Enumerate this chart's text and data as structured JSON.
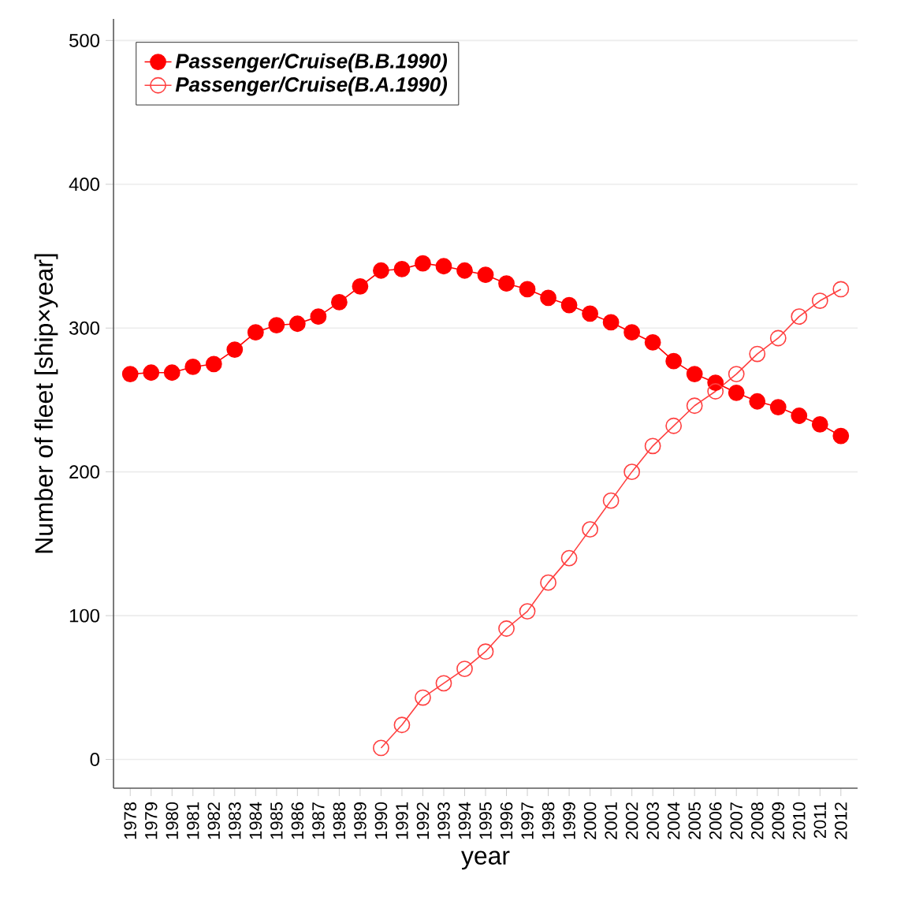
{
  "chart_data": {
    "type": "line",
    "xlabel": "year",
    "ylabel": "Number of fleet [ship×year]",
    "categories": [
      "1978",
      "1979",
      "1980",
      "1981",
      "1982",
      "1983",
      "1984",
      "1985",
      "1986",
      "1987",
      "1988",
      "1989",
      "1990",
      "1991",
      "1992",
      "1993",
      "1994",
      "1995",
      "1996",
      "1997",
      "1998",
      "1999",
      "2000",
      "2001",
      "2002",
      "2003",
      "2004",
      "2005",
      "2006",
      "2007",
      "2008",
      "2009",
      "2010",
      "2011",
      "2012"
    ],
    "series": [
      {
        "name": "Passenger/Cruise(B.B.1990)",
        "color": "#ff0000",
        "values": [
          268,
          269,
          269,
          273,
          275,
          285,
          297,
          302,
          303,
          308,
          318,
          329,
          340,
          341,
          345,
          343,
          340,
          337,
          331,
          327,
          321,
          316,
          310,
          304,
          297,
          290,
          277,
          268,
          262,
          255,
          249,
          245,
          239,
          233,
          225
        ]
      },
      {
        "name": "Passenger/Cruise(B.A.1990)",
        "color": "#ff4040",
        "values": [
          null,
          null,
          null,
          null,
          null,
          null,
          null,
          null,
          null,
          null,
          null,
          null,
          8,
          24,
          43,
          53,
          63,
          75,
          91,
          103,
          123,
          140,
          160,
          180,
          200,
          218,
          232,
          246,
          256,
          268,
          282,
          293,
          308,
          319,
          327
        ]
      }
    ],
    "ylim": [
      -20,
      515
    ],
    "yticks": [
      0,
      100,
      200,
      300,
      400,
      500
    ],
    "grid": "y",
    "legend": "top left",
    "marker": "circle",
    "line_style": "solid"
  }
}
